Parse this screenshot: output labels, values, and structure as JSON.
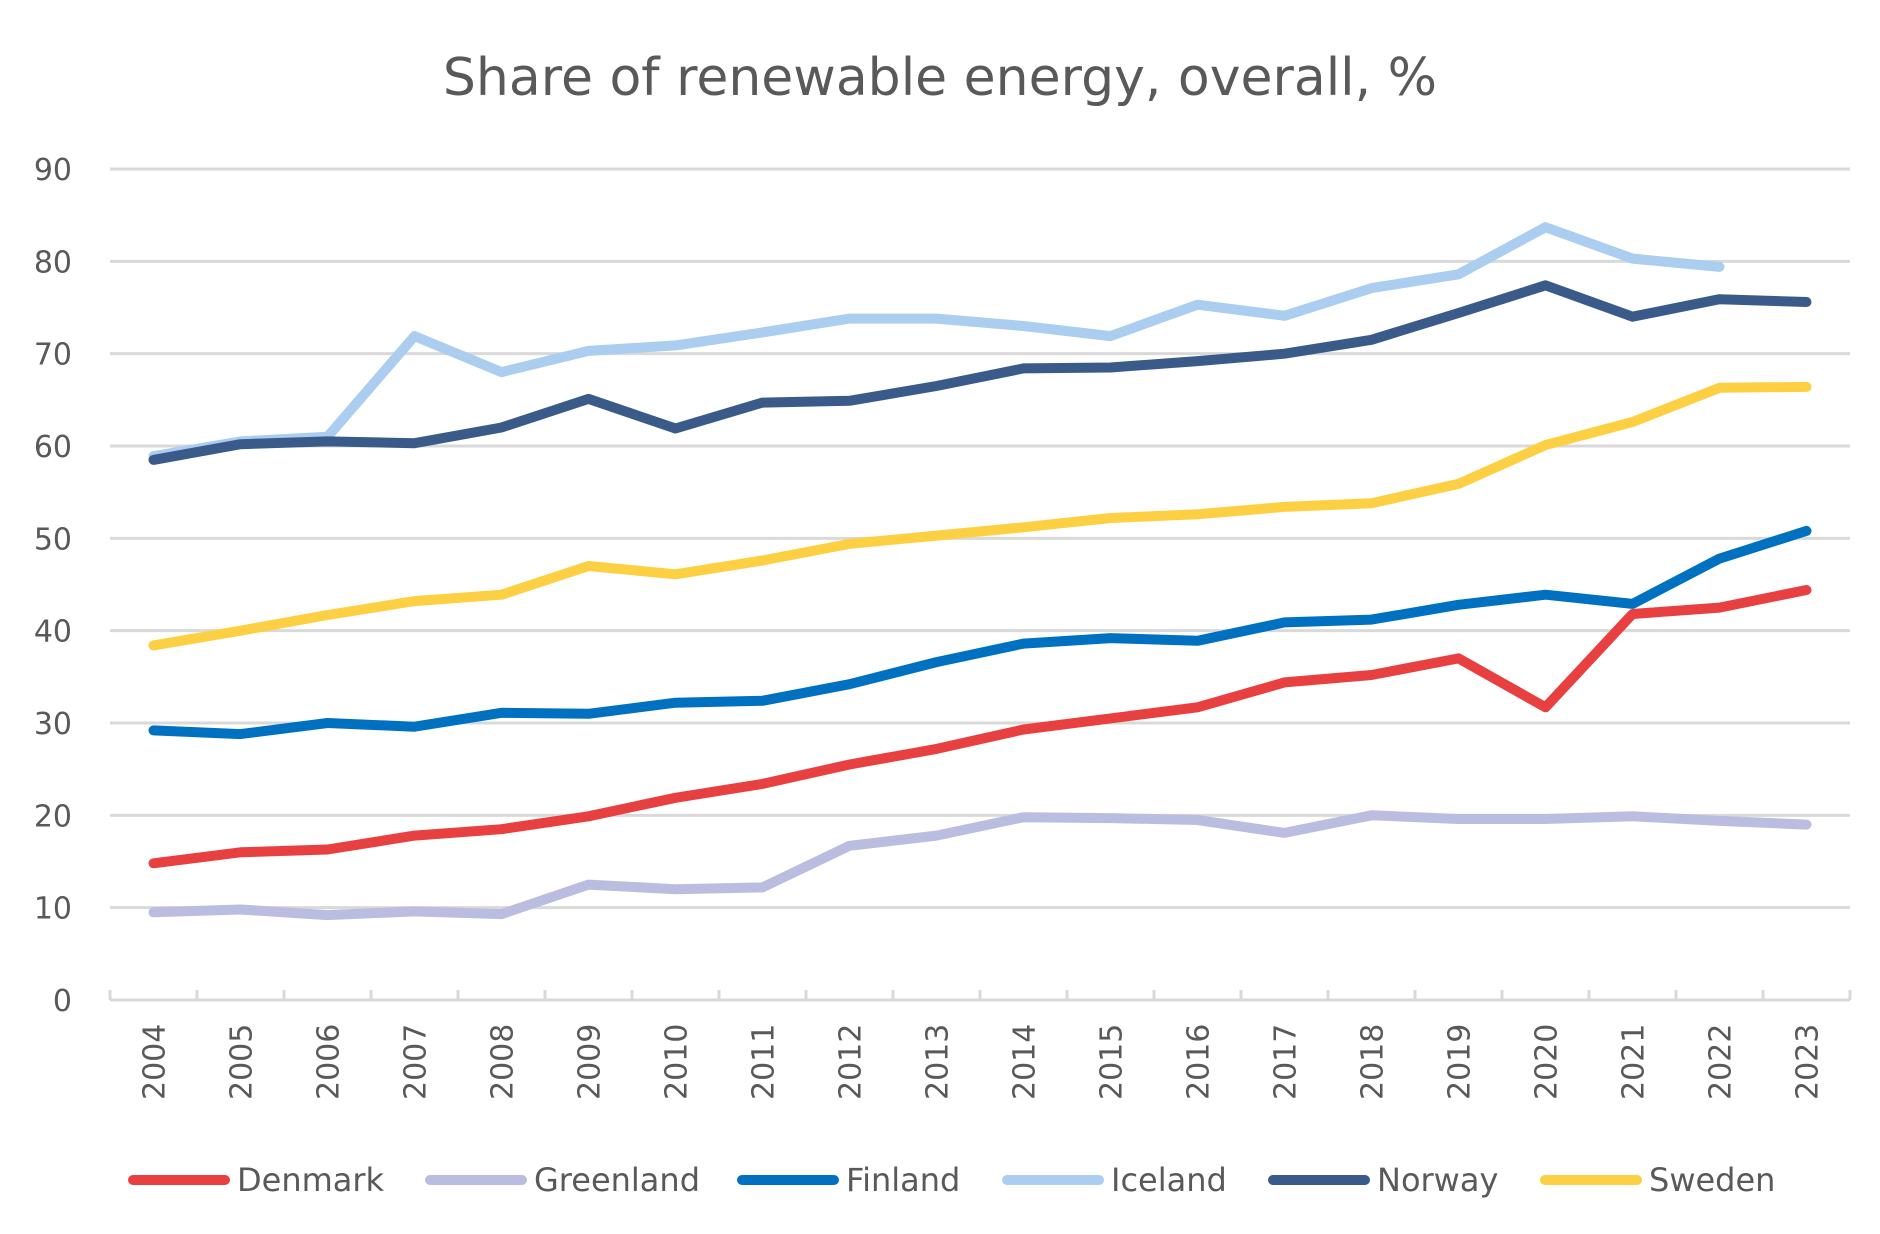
{
  "chart_data": {
    "type": "line",
    "title": "Share of renewable energy, overall, %",
    "xlabel": "",
    "ylabel": "",
    "ylim": [
      0,
      90
    ],
    "yticks": [
      0,
      10,
      20,
      30,
      40,
      50,
      60,
      70,
      80,
      90
    ],
    "grid": true,
    "legend_position": "bottom",
    "categories": [
      "2004",
      "2005",
      "2006",
      "2007",
      "2008",
      "2009",
      "2010",
      "2011",
      "2012",
      "2013",
      "2014",
      "2015",
      "2016",
      "2017",
      "2018",
      "2019",
      "2020",
      "2021",
      "2022",
      "2023"
    ],
    "series": [
      {
        "name": "Denmark",
        "color": "#e84040",
        "values": [
          14.8,
          16.0,
          16.3,
          17.8,
          18.5,
          19.9,
          21.9,
          23.4,
          25.5,
          27.2,
          29.3,
          30.5,
          31.7,
          34.4,
          35.2,
          37.0,
          31.7,
          41.8,
          42.5,
          44.4
        ]
      },
      {
        "name": "Greenland",
        "color": "#bbbde0",
        "values": [
          9.5,
          9.8,
          9.2,
          9.6,
          9.3,
          12.5,
          12.0,
          12.2,
          16.7,
          17.8,
          19.8,
          19.7,
          19.5,
          18.1,
          20.0,
          19.6,
          19.6,
          19.9,
          19.4,
          19.0
        ]
      },
      {
        "name": "Finland",
        "color": "#0070c0",
        "values": [
          29.2,
          28.8,
          30.0,
          29.6,
          31.1,
          31.0,
          32.2,
          32.4,
          34.2,
          36.6,
          38.6,
          39.2,
          38.9,
          40.9,
          41.2,
          42.8,
          43.9,
          42.9,
          47.8,
          50.8
        ]
      },
      {
        "name": "Iceland",
        "color": "#abcdf0",
        "values": [
          58.9,
          60.5,
          61.0,
          71.9,
          68.0,
          70.3,
          70.9,
          72.3,
          73.8,
          73.8,
          73.0,
          71.9,
          75.3,
          74.1,
          77.1,
          78.6,
          83.7,
          80.3,
          79.4,
          null
        ]
      },
      {
        "name": "Norway",
        "color": "#3a5a8a",
        "values": [
          58.5,
          60.2,
          60.5,
          60.3,
          62.0,
          65.1,
          61.9,
          64.7,
          64.9,
          66.5,
          68.4,
          68.5,
          69.2,
          70.0,
          71.5,
          74.4,
          77.4,
          74.0,
          75.9,
          75.6
        ]
      },
      {
        "name": "Sweden",
        "color": "#fdd043",
        "values": [
          38.4,
          40.0,
          41.7,
          43.2,
          43.9,
          47.0,
          46.1,
          47.6,
          49.4,
          50.3,
          51.2,
          52.2,
          52.6,
          53.4,
          53.8,
          55.9,
          60.1,
          62.6,
          66.3,
          66.4
        ]
      }
    ]
  }
}
